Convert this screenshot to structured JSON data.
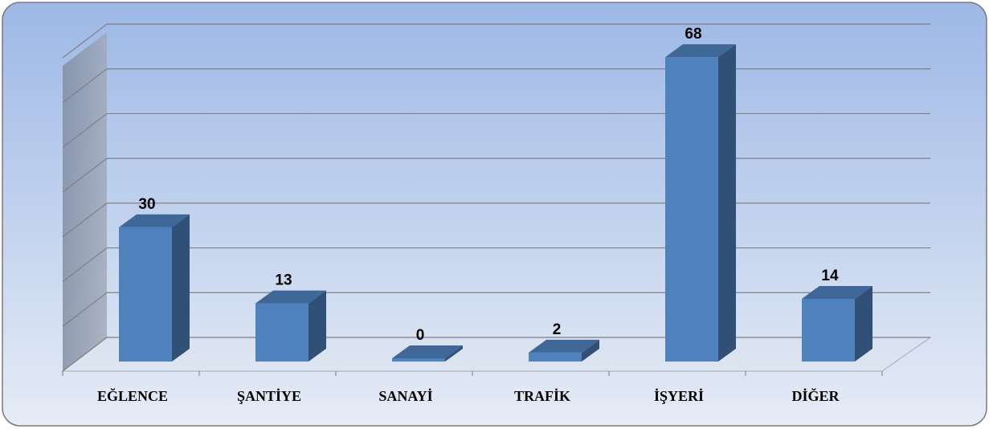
{
  "chart_data": {
    "type": "bar3d",
    "categories": [
      "EĞLENCE",
      "ŞANTİYE",
      "SANAYİ",
      "TRAFİK",
      "İŞYERİ",
      "DİĞER"
    ],
    "values": [
      30,
      13,
      0,
      2,
      68,
      14
    ],
    "color": "#4f81bd",
    "ylim": [
      0,
      70
    ],
    "yticks": [
      0,
      10,
      20,
      30,
      40,
      50,
      60,
      70
    ],
    "grid": true
  }
}
